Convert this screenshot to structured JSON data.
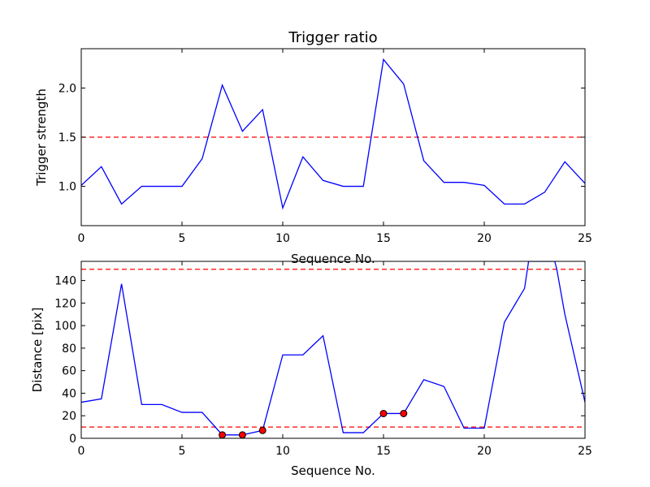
{
  "chart_data": [
    {
      "type": "line",
      "title": "Trigger ratio",
      "xlabel": "Sequence No.",
      "ylabel": "Trigger strength",
      "xlim": [
        0,
        25
      ],
      "ylim": [
        0.6,
        2.4
      ],
      "xticks": [
        0,
        5,
        10,
        15,
        20,
        25
      ],
      "yticks": [
        1.0,
        1.5,
        2.0
      ],
      "ytick_labels": [
        "1.0",
        "1.5",
        "2.0"
      ],
      "grid": false,
      "colors": {
        "line": "#0000ff",
        "threshold": "#ff0000"
      },
      "series": [
        {
          "x": [
            0,
            1,
            2,
            3,
            4,
            5,
            6,
            7,
            8,
            9,
            10,
            11,
            12,
            13,
            14,
            15,
            16,
            17,
            18,
            19,
            20,
            21,
            22,
            23,
            24,
            25
          ],
          "values": [
            1.01,
            1.2,
            0.82,
            1.0,
            1.0,
            1.0,
            1.28,
            2.03,
            1.56,
            1.78,
            0.78,
            1.3,
            1.06,
            1.0,
            1.0,
            2.29,
            2.04,
            1.26,
            1.04,
            1.04,
            1.01,
            0.82,
            0.82,
            0.94,
            1.25,
            1.03
          ]
        }
      ],
      "hlines": [
        1.5
      ]
    },
    {
      "type": "line",
      "title": "",
      "xlabel": "Sequence No.",
      "ylabel": "Distance [pix]",
      "xlim": [
        0,
        25
      ],
      "ylim": [
        0,
        157
      ],
      "xticks": [
        0,
        5,
        10,
        15,
        20,
        25
      ],
      "yticks": [
        0,
        20,
        40,
        60,
        80,
        100,
        120,
        140
      ],
      "ytick_labels": [
        "0",
        "20",
        "40",
        "60",
        "80",
        "100",
        "120",
        "140"
      ],
      "grid": false,
      "colors": {
        "line": "#0000ff",
        "threshold": "#ff0000",
        "marker": "#ff0000"
      },
      "series": [
        {
          "x": [
            0,
            1,
            2,
            3,
            4,
            5,
            6,
            7,
            8,
            9,
            10,
            11,
            12,
            13,
            14,
            15,
            16,
            17,
            18,
            19,
            20,
            21,
            22,
            22.2,
            23.5,
            23.6,
            24,
            25
          ],
          "values": [
            32,
            35,
            137,
            30,
            30,
            23,
            23,
            3,
            3,
            7,
            74,
            74,
            91,
            5,
            5,
            22,
            22,
            52,
            46,
            9,
            9,
            103,
            133,
            157,
            157,
            150,
            110,
            32
          ]
        }
      ],
      "markers": {
        "x": [
          7,
          8,
          9,
          15,
          16
        ],
        "values": [
          3,
          3,
          7,
          22,
          22
        ]
      },
      "hlines": [
        10,
        150
      ]
    }
  ]
}
